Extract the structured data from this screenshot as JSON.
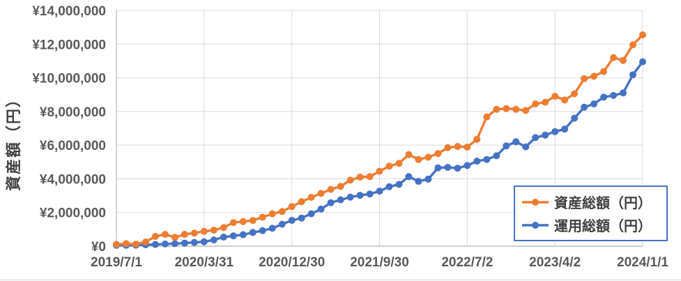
{
  "chart_data": {
    "type": "line",
    "title": "",
    "xlabel": "",
    "ylabel": "資産額（円）",
    "ylim": [
      0,
      14000000
    ],
    "y_tick_step": 2000000,
    "y_tick_labels": [
      "¥0",
      "¥2,000,000",
      "¥4,000,000",
      "¥6,000,000",
      "¥8,000,000",
      "¥10,000,000",
      "¥12,000,000",
      "¥14,000,000"
    ],
    "x_tick_labels": [
      "2019/7/1",
      "2020/3/31",
      "2020/12/30",
      "2021/9/30",
      "2022/7/2",
      "2023/4/2",
      "2024/1/1"
    ],
    "x_tick_indices": [
      0,
      9,
      18,
      27,
      36,
      45,
      54
    ],
    "n_points": 55,
    "grid": true,
    "legend_position": "inside-bottom-right",
    "series": [
      {
        "name": "資産総額（円）",
        "color": "#ED7D31",
        "values": [
          100000,
          150000,
          120000,
          250000,
          580000,
          700000,
          520000,
          700000,
          780000,
          880000,
          950000,
          1100000,
          1400000,
          1460000,
          1530000,
          1720000,
          1920000,
          2060000,
          2350000,
          2640000,
          2900000,
          3130000,
          3370000,
          3550000,
          3920000,
          4100000,
          4130000,
          4450000,
          4750000,
          4920000,
          5440000,
          5150000,
          5280000,
          5500000,
          5850000,
          5920000,
          5880000,
          6350000,
          7680000,
          8130000,
          8170000,
          8130000,
          8060000,
          8450000,
          8550000,
          8900000,
          8680000,
          9050000,
          9950000,
          10090000,
          10370000,
          11200000,
          11030000,
          11960000,
          12550000
        ]
      },
      {
        "name": "運用総額（円）",
        "color": "#4472C4",
        "values": [
          50000,
          50000,
          60000,
          80000,
          100000,
          130000,
          150000,
          180000,
          220000,
          260000,
          370000,
          540000,
          610000,
          680000,
          810000,
          920000,
          1060000,
          1300000,
          1530000,
          1670000,
          1920000,
          2200000,
          2580000,
          2750000,
          2910000,
          3020000,
          3100000,
          3270000,
          3530000,
          3670000,
          4130000,
          3850000,
          3980000,
          4650000,
          4680000,
          4630000,
          4790000,
          5050000,
          5150000,
          5370000,
          5950000,
          6200000,
          5900000,
          6450000,
          6600000,
          6800000,
          6950000,
          7600000,
          8250000,
          8450000,
          8850000,
          8950000,
          9100000,
          10180000,
          10950000
        ]
      }
    ]
  },
  "colors": {
    "gridline": "#D9D9D9",
    "axis_line": "#BFBFBF",
    "tick_label": "#595959",
    "title_text": "#404040",
    "legend_border": "#4472C4",
    "background": "#FFFFFF"
  }
}
